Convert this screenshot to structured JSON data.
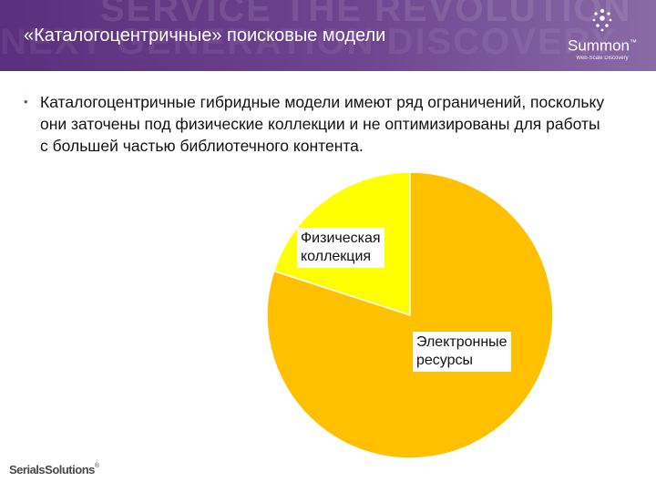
{
  "header": {
    "title": "«Каталогоцентричные» поисковые модели",
    "watermark_line1": "SERVICE THE REVOLUTION",
    "watermark_line2": "NEXT GENERATION DISCOVERY",
    "logo": {
      "name": "Summon",
      "trademark": "™",
      "tagline": "Web-Scale Discovery"
    }
  },
  "body": {
    "bullet_symbol": "•",
    "bullet_text": "Каталогоцентричные гибридные модели имеют ряд ограничений, поскольку они заточены под физические коллекции и не оптимизированы для работы с большей частью библиотечного контента."
  },
  "chart_data": {
    "type": "pie",
    "title": "",
    "categories": [
      "Физическая коллекция",
      "Электронные ресурсы"
    ],
    "values": [
      20,
      80
    ],
    "colors": [
      "#ffff00",
      "#ffc000"
    ],
    "labels": [
      {
        "line1": "Физическая",
        "line2": "коллекция"
      },
      {
        "line1": "Электронные",
        "line2": "ресурсы"
      }
    ]
  },
  "footer": {
    "logo_text": "SerialsSolutions",
    "registered": "®"
  },
  "colors": {
    "header_purple": "#5a2f7d",
    "slice_small": "#ffff00",
    "slice_large": "#ffc000"
  }
}
